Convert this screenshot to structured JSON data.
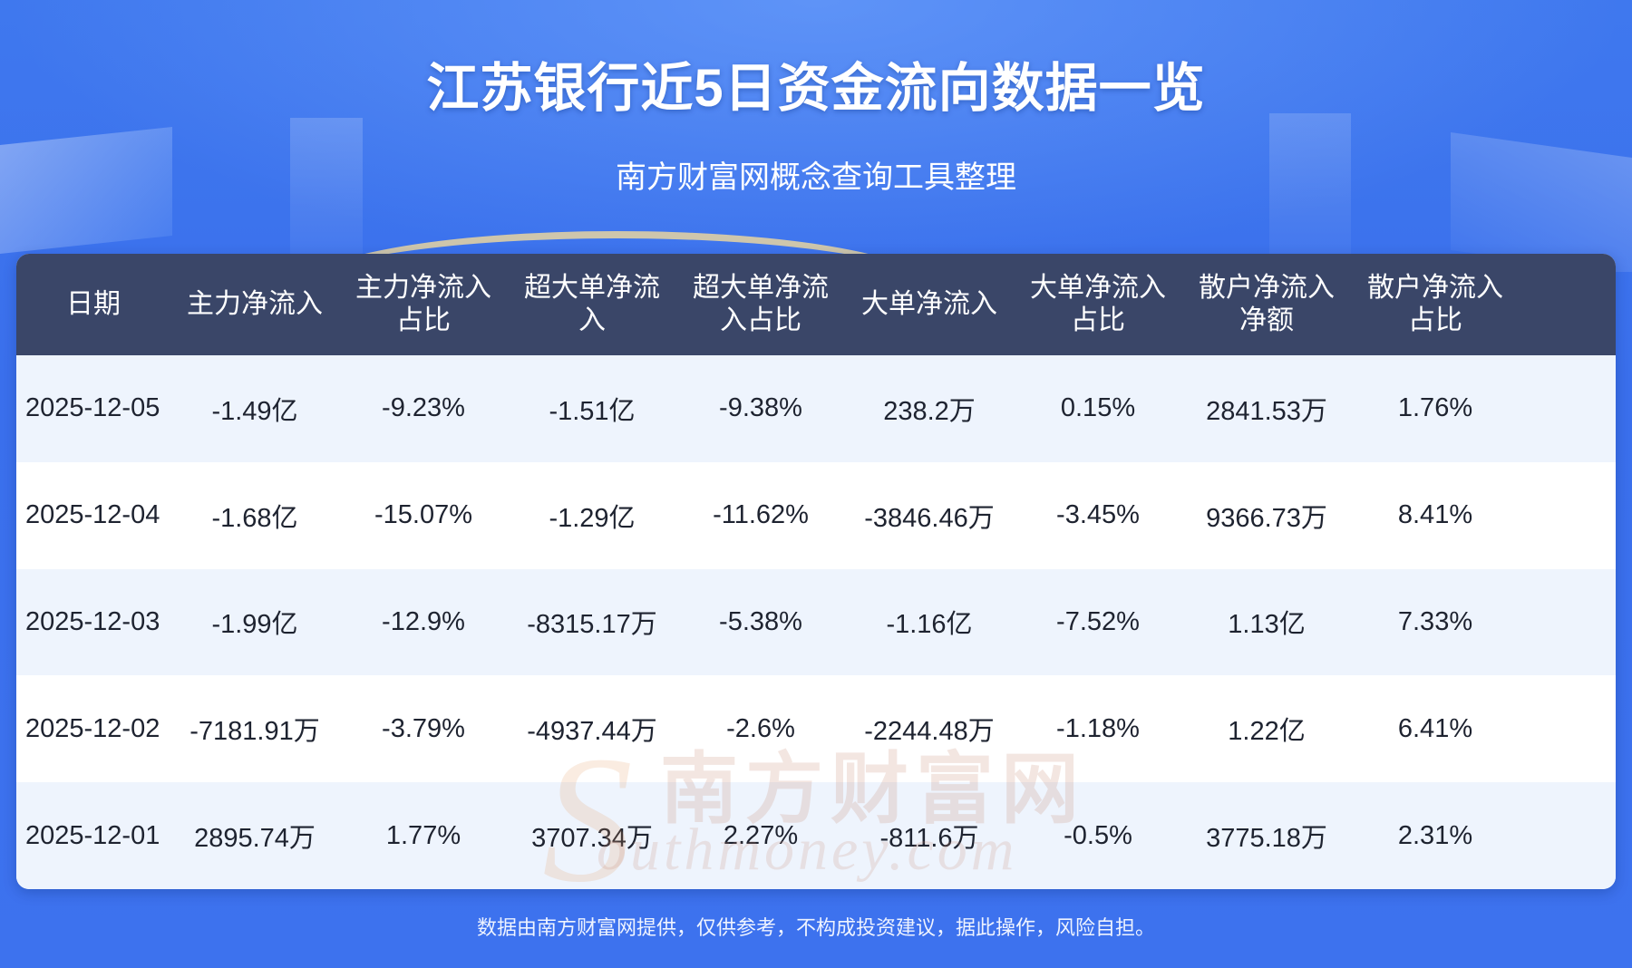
{
  "title": "江苏银行近5日资金流向数据一览",
  "subtitle": "南方财富网概念查询工具整理",
  "watermark": {
    "cn": "南方财富网",
    "en": "outhmoney.com",
    "s": "S"
  },
  "footer": "数据由南方财富网提供，仅供参考，不构成投资建议，据此操作，风险自担。",
  "chart_data": {
    "type": "table",
    "columns": [
      "日期",
      "主力净流入",
      "主力净流入占比",
      "超大单净流入",
      "超大单净流入占比",
      "大单净流入",
      "大单净流入占比",
      "散户净流入净额",
      "散户净流入占比"
    ],
    "header_lines": [
      [
        "日期"
      ],
      [
        "主力净流入"
      ],
      [
        "主力净流入",
        "占比"
      ],
      [
        "超大单净流",
        "入"
      ],
      [
        "超大单净流",
        "入占比"
      ],
      [
        "大单净流入"
      ],
      [
        "大单净流入",
        "占比"
      ],
      [
        "散户净流入",
        "净额"
      ],
      [
        "散户净流入",
        "占比"
      ]
    ],
    "rows": [
      [
        "2025-12-05",
        "-1.49亿",
        "-9.23%",
        "-1.51亿",
        "-9.38%",
        "238.2万",
        "0.15%",
        "2841.53万",
        "1.76%"
      ],
      [
        "2025-12-04",
        "-1.68亿",
        "-15.07%",
        "-1.29亿",
        "-11.62%",
        "-3846.46万",
        "-3.45%",
        "9366.73万",
        "8.41%"
      ],
      [
        "2025-12-03",
        "-1.99亿",
        "-12.9%",
        "-8315.17万",
        "-5.38%",
        "-1.16亿",
        "-7.52%",
        "1.13亿",
        "7.33%"
      ],
      [
        "2025-12-02",
        "-7181.91万",
        "-3.79%",
        "-4937.44万",
        "-2.6%",
        "-2244.48万",
        "-1.18%",
        "1.22亿",
        "6.41%"
      ],
      [
        "2025-12-01",
        "2895.74万",
        "1.77%",
        "3707.34万",
        "2.27%",
        "-811.6万",
        "-0.5%",
        "3775.18万",
        "2.31%"
      ]
    ]
  },
  "colors": {
    "background": "#3f78ee",
    "header_bg": "#3a4668",
    "row_alt_bg": "#eef4fd",
    "text": "#1e2330"
  }
}
